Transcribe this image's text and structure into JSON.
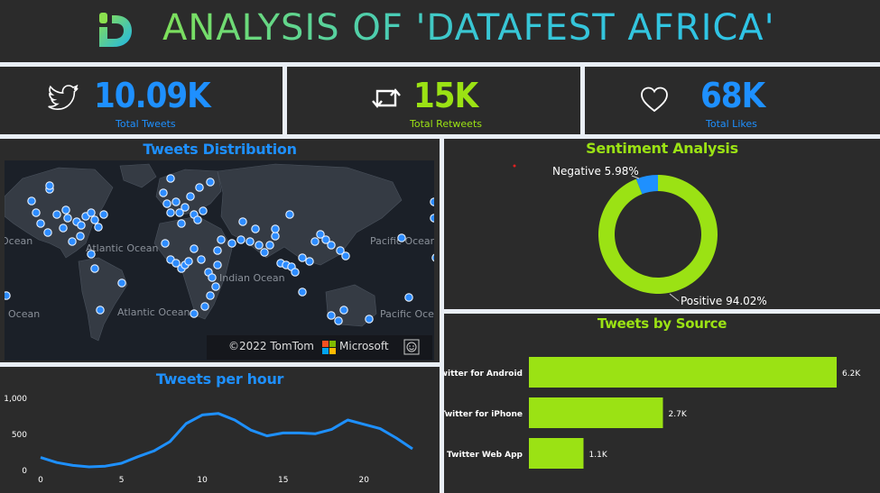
{
  "header": {
    "title": "ANALYSIS OF 'DATAFEST AFRICA'"
  },
  "kpis": [
    {
      "value": "10.09K",
      "label": "Total Tweets",
      "icon": "twitter-bird-icon",
      "color": "#1e90ff"
    },
    {
      "value": "15K",
      "label": "Total Retweets",
      "icon": "retweet-icon",
      "color": "#9be214"
    },
    {
      "value": "68K",
      "label": "Total Likes",
      "icon": "heart-icon",
      "color": "#1e90ff"
    }
  ],
  "map": {
    "title": "Tweets Distribution",
    "labels": [
      "Ocean",
      "Atlantic Ocean",
      "Pacific Ocean",
      "Indian Ocean",
      "Atlantic Ocean",
      "Pacific Ocean",
      "Ocean"
    ],
    "attribution": "©2022 TomTom",
    "brand": "Microsoft"
  },
  "colors": {
    "blue": "#1e90ff",
    "green": "#9be214",
    "panel": "#2b2b2b"
  },
  "chart_data": [
    {
      "type": "pie",
      "title": "Sentiment Analysis",
      "slices": [
        {
          "label": "Negative",
          "value": 5.98,
          "text": "Negative 5.98%",
          "color": "#1e90ff"
        },
        {
          "label": "Positive",
          "value": 94.02,
          "text": "Positive 94.02%",
          "color": "#9be214"
        }
      ]
    },
    {
      "type": "bar",
      "title": "Tweets by Source",
      "categories": [
        "Twitter for Android",
        "Twitter for iPhone",
        "Twitter Web App"
      ],
      "values": [
        6200,
        2700,
        1100
      ],
      "value_labels": [
        "6.2K",
        "2.7K",
        "1.1K"
      ],
      "color": "#9be214"
    },
    {
      "type": "line",
      "title": "Tweets per hour",
      "x": [
        0,
        1,
        2,
        3,
        4,
        5,
        6,
        7,
        8,
        9,
        10,
        11,
        12,
        13,
        14,
        15,
        16,
        17,
        18,
        19,
        20,
        21,
        22,
        23
      ],
      "y": [
        180,
        110,
        70,
        50,
        60,
        100,
        190,
        270,
        400,
        650,
        770,
        790,
        700,
        560,
        480,
        520,
        520,
        510,
        570,
        700,
        640,
        580,
        450,
        300
      ],
      "ylim": [
        0,
        1000
      ],
      "xticks": [
        "0",
        "5",
        "10",
        "15",
        "20"
      ],
      "yticks": [
        "0",
        "500",
        "1,000"
      ],
      "color": "#1e90ff"
    }
  ]
}
